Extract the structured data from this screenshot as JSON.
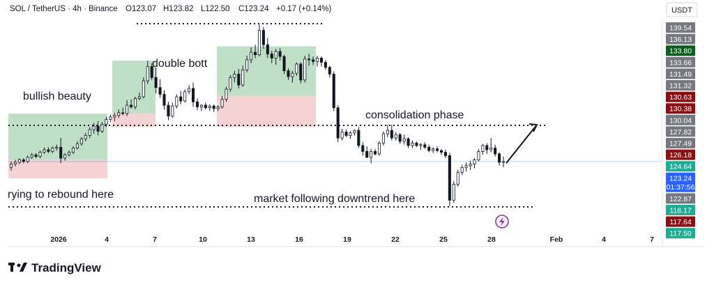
{
  "header": {
    "symbol": "SOL / TetherUS · 4h · Binance",
    "open": "O123.07",
    "high": "H123.82",
    "low": "L122.50",
    "close": "C123.24",
    "change": "+0.17 (+0.14%)"
  },
  "currency_button": "USDT",
  "logo_text": "TradingView",
  "colors": {
    "up": "#22ab94",
    "down": "#f23645",
    "candle": "#131722",
    "long_profit_zone": "#a9d6b3",
    "long_loss_zone": "#f2c7c9",
    "price_line": "#1e88e5"
  },
  "chart_data": {
    "type": "candlestick",
    "x_tick_labels": [
      "2026",
      "4",
      "7",
      "10",
      "13",
      "16",
      "19",
      "22",
      "25",
      "28",
      "Feb",
      "4",
      "7"
    ],
    "price_scale_labels": [
      {
        "value": "139.54",
        "style": "grey"
      },
      {
        "value": "136.13",
        "style": "grey"
      },
      {
        "value": "133.80",
        "style": "dark-green"
      },
      {
        "value": "133.66",
        "style": "grey"
      },
      {
        "value": "131.49",
        "style": "grey"
      },
      {
        "value": "131.32",
        "style": "grey"
      },
      {
        "value": "130.63",
        "style": "dark-red"
      },
      {
        "value": "130.38",
        "style": "dark-red"
      },
      {
        "value": "130.04",
        "style": "grey"
      },
      {
        "value": "127.82",
        "style": "grey"
      },
      {
        "value": "127.49",
        "style": "grey"
      },
      {
        "value": "126.18",
        "style": "dark-red"
      },
      {
        "value": "124.64",
        "style": "green"
      },
      {
        "value": "123.24",
        "style": "blue",
        "countdown": "01:37:56"
      },
      {
        "value": "122.87",
        "style": "grey"
      },
      {
        "value": "118.17",
        "style": "green"
      },
      {
        "value": "117.64",
        "style": "dark-red"
      },
      {
        "value": "117.50",
        "style": "green"
      }
    ],
    "annotations": [
      "bullish beauty",
      "double bott",
      "consolidation phase",
      "rying to rebound here",
      "market following downtrend here"
    ],
    "levels": {
      "top_dotted": 139.6,
      "resistance_dotted": 127.5,
      "bottom_dotted": 117.8
    },
    "position_boxes": [
      {
        "type": "long",
        "entry": 123.4,
        "target": 128.9,
        "stop": 121.2
      },
      {
        "type": "long",
        "entry": 128.9,
        "target": 135.2,
        "stop": 127.3
      },
      {
        "type": "long",
        "entry": 131.0,
        "target": 136.9,
        "stop": 127.3
      }
    ],
    "projection_arrow": {
      "from": 123.0,
      "to": 127.5
    },
    "candles": [
      [
        122.5,
        123.2,
        122.1,
        122.9
      ],
      [
        122.9,
        123.4,
        122.6,
        123.1
      ],
      [
        123.1,
        123.6,
        122.9,
        123.4
      ],
      [
        123.4,
        123.6,
        123.0,
        123.2
      ],
      [
        123.2,
        123.9,
        123.0,
        123.7
      ],
      [
        123.7,
        124.2,
        123.5,
        124.0
      ],
      [
        124.0,
        124.2,
        123.6,
        123.8
      ],
      [
        123.8,
        124.5,
        123.6,
        124.3
      ],
      [
        124.3,
        124.9,
        124.1,
        124.6
      ],
      [
        124.6,
        124.9,
        124.2,
        124.4
      ],
      [
        124.4,
        125.0,
        124.2,
        124.8
      ],
      [
        124.8,
        125.2,
        124.5,
        124.9
      ],
      [
        124.9,
        126.0,
        123.0,
        123.6
      ],
      [
        123.6,
        124.2,
        123.3,
        124.0
      ],
      [
        124.0,
        124.5,
        123.8,
        124.3
      ],
      [
        124.3,
        125.0,
        124.1,
        124.8
      ],
      [
        124.8,
        125.6,
        124.6,
        125.3
      ],
      [
        125.3,
        126.1,
        125.1,
        125.9
      ],
      [
        125.9,
        126.6,
        125.6,
        126.3
      ],
      [
        126.3,
        127.3,
        126.0,
        127.0
      ],
      [
        127.0,
        127.8,
        126.5,
        127.4
      ],
      [
        127.4,
        128.0,
        126.3,
        126.8
      ],
      [
        126.8,
        127.9,
        126.6,
        127.6
      ],
      [
        127.6,
        128.5,
        127.3,
        128.2
      ],
      [
        128.2,
        128.8,
        127.9,
        128.5
      ],
      [
        128.5,
        129.0,
        128.0,
        128.7
      ],
      [
        128.7,
        129.4,
        128.4,
        129.0
      ],
      [
        129.0,
        129.6,
        128.7,
        128.9
      ],
      [
        128.9,
        130.5,
        128.6,
        129.9
      ],
      [
        129.9,
        130.6,
        129.5,
        129.7
      ],
      [
        129.7,
        130.9,
        129.4,
        130.7
      ],
      [
        130.7,
        131.4,
        130.5,
        130.9
      ],
      [
        130.9,
        133.2,
        130.7,
        132.8
      ],
      [
        132.8,
        135.2,
        132.4,
        134.5
      ],
      [
        134.5,
        134.9,
        132.9,
        133.2
      ],
      [
        133.2,
        134.4,
        131.3,
        132.0
      ],
      [
        132.0,
        133.0,
        130.8,
        131.2
      ],
      [
        131.2,
        131.7,
        129.4,
        129.9
      ],
      [
        129.9,
        130.3,
        128.1,
        128.6
      ],
      [
        128.6,
        130.2,
        128.4,
        129.8
      ],
      [
        129.8,
        131.2,
        129.5,
        130.9
      ],
      [
        130.9,
        131.6,
        130.0,
        130.4
      ],
      [
        130.4,
        131.8,
        130.2,
        131.5
      ],
      [
        131.5,
        132.3,
        131.2,
        131.9
      ],
      [
        131.9,
        132.6,
        129.7,
        130.3
      ],
      [
        130.3,
        130.7,
        129.3,
        129.7
      ],
      [
        129.7,
        130.0,
        129.2,
        129.9
      ],
      [
        129.9,
        130.2,
        129.4,
        129.6
      ],
      [
        129.6,
        130.0,
        129.2,
        129.8
      ],
      [
        129.8,
        130.0,
        129.1,
        129.5
      ],
      [
        129.5,
        129.9,
        129.2,
        129.7
      ],
      [
        129.7,
        131.0,
        129.5,
        130.6
      ],
      [
        130.6,
        132.1,
        130.3,
        131.8
      ],
      [
        131.8,
        133.5,
        131.5,
        133.2
      ],
      [
        133.2,
        134.0,
        132.6,
        133.6
      ],
      [
        133.6,
        134.2,
        131.9,
        132.3
      ],
      [
        132.3,
        134.6,
        132.1,
        134.1
      ],
      [
        134.1,
        135.8,
        133.8,
        135.3
      ],
      [
        135.3,
        136.8,
        134.9,
        136.2
      ],
      [
        136.2,
        137.1,
        135.5,
        135.9
      ],
      [
        135.9,
        139.5,
        135.7,
        138.8
      ],
      [
        138.8,
        139.2,
        136.6,
        137.1
      ],
      [
        137.1,
        137.9,
        135.5,
        136.0
      ],
      [
        136.0,
        136.4,
        134.9,
        135.5
      ],
      [
        135.5,
        136.6,
        134.7,
        136.3
      ],
      [
        136.3,
        136.7,
        135.2,
        135.7
      ],
      [
        135.7,
        135.9,
        133.6,
        134.0
      ],
      [
        134.0,
        134.3,
        132.9,
        133.3
      ],
      [
        133.3,
        134.0,
        132.6,
        133.7
      ],
      [
        133.7,
        135.0,
        133.4,
        134.8
      ],
      [
        134.8,
        135.0,
        132.5,
        132.9
      ],
      [
        132.9,
        135.8,
        132.6,
        135.4
      ],
      [
        135.4,
        136.0,
        134.6,
        135.3
      ],
      [
        135.3,
        135.7,
        134.7,
        135.1
      ],
      [
        135.1,
        135.8,
        134.5,
        135.5
      ],
      [
        135.5,
        135.7,
        134.5,
        135.0
      ],
      [
        135.0,
        135.3,
        134.1,
        134.4
      ],
      [
        134.4,
        134.6,
        133.2,
        133.6
      ],
      [
        133.6,
        133.9,
        129.2,
        129.6
      ],
      [
        129.6,
        129.9,
        125.5,
        126.0
      ],
      [
        126.0,
        127.1,
        125.7,
        126.7
      ],
      [
        126.7,
        127.0,
        126.1,
        126.3
      ],
      [
        126.3,
        126.8,
        125.9,
        126.6
      ],
      [
        126.6,
        127.0,
        126.3,
        126.9
      ],
      [
        126.9,
        127.3,
        124.8,
        125.1
      ],
      [
        125.1,
        125.5,
        123.9,
        124.4
      ],
      [
        124.4,
        125.0,
        123.6,
        123.7
      ],
      [
        123.7,
        124.7,
        123.0,
        124.4
      ],
      [
        124.4,
        124.7,
        123.9,
        124.1
      ],
      [
        124.1,
        125.6,
        123.9,
        125.4
      ],
      [
        125.4,
        126.8,
        125.1,
        126.5
      ],
      [
        126.5,
        127.6,
        126.1,
        126.9
      ],
      [
        126.9,
        127.6,
        125.7,
        126.0
      ],
      [
        126.0,
        126.7,
        125.7,
        126.4
      ],
      [
        126.4,
        126.6,
        125.3,
        125.6
      ],
      [
        125.6,
        126.4,
        125.2,
        125.9
      ],
      [
        125.9,
        126.1,
        124.8,
        125.1
      ],
      [
        125.1,
        125.7,
        124.8,
        125.4
      ],
      [
        125.4,
        125.6,
        124.9,
        125.1
      ],
      [
        125.1,
        125.4,
        124.6,
        125.2
      ],
      [
        125.2,
        125.5,
        124.7,
        124.9
      ],
      [
        124.9,
        125.2,
        124.3,
        124.5
      ],
      [
        124.5,
        124.9,
        124.2,
        124.7
      ],
      [
        124.7,
        125.0,
        124.3,
        124.5
      ],
      [
        124.5,
        124.7,
        124.0,
        124.3
      ],
      [
        124.3,
        124.6,
        123.6,
        123.9
      ],
      [
        123.9,
        124.2,
        117.9,
        118.6
      ],
      [
        118.6,
        120.9,
        118.3,
        120.5
      ],
      [
        120.5,
        122.2,
        120.2,
        121.9
      ],
      [
        121.9,
        122.8,
        121.6,
        122.5
      ],
      [
        122.5,
        123.1,
        122.0,
        122.7
      ],
      [
        122.7,
        123.3,
        122.2,
        122.9
      ],
      [
        122.9,
        123.6,
        122.4,
        123.4
      ],
      [
        123.4,
        124.7,
        123.2,
        124.4
      ],
      [
        124.4,
        125.3,
        124.0,
        125.1
      ],
      [
        125.1,
        125.4,
        124.1,
        124.6
      ],
      [
        124.6,
        126.0,
        124.3,
        124.8
      ],
      [
        124.8,
        125.2,
        123.8,
        124.1
      ],
      [
        124.1,
        124.3,
        122.7,
        123.1
      ],
      [
        123.1,
        123.8,
        122.5,
        123.2
      ]
    ]
  }
}
